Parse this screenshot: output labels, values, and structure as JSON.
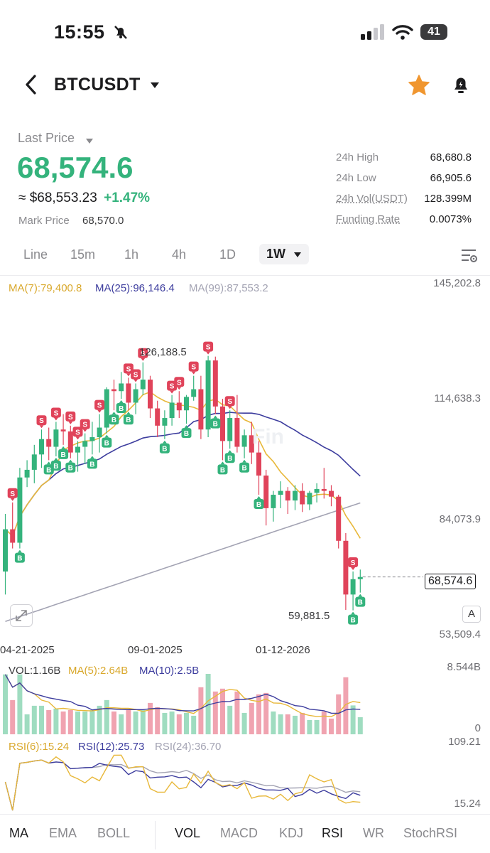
{
  "status_bar": {
    "time": "15:55",
    "battery": "41"
  },
  "header": {
    "symbol": "BTCUSDT"
  },
  "ticker": {
    "last_price_label": "Last Price",
    "last_price": "68,574.6",
    "usd_approx": "≈ $68,553.23",
    "change": "+1.47%",
    "mark_price_label": "Mark Price",
    "mark_price": "68,570.0",
    "stats": [
      {
        "label": "24h High",
        "value": "68,680.8"
      },
      {
        "label": "24h Low",
        "value": "66,905.6"
      },
      {
        "label": "24h Vol(USDT)",
        "value": "128.399M"
      },
      {
        "label": "Funding Rate",
        "value": "0.0073%"
      }
    ]
  },
  "timeframes": [
    "Line",
    "15m",
    "1h",
    "4h",
    "1D",
    "1W"
  ],
  "active_timeframe": "1W",
  "ma_legend": {
    "ma7": "MA(7):79,400.8",
    "ma25": "MA(25):96,146.4",
    "ma99": "MA(99):87,553.2"
  },
  "axis_labels": [
    "145,202.8",
    "114,638.3",
    "84,073.9",
    "53,509.4"
  ],
  "date_labels": [
    "04-21-2025",
    "09-01-2025",
    "01-12-2026"
  ],
  "annotations": {
    "high": "126,188.5",
    "low": "59,881.5",
    "current": "68,574.6",
    "scale_mode": "A"
  },
  "vol_legend": {
    "vol": "VOL:1.16B",
    "ma5": "MA(5):2.64B",
    "ma10": "MA(10):2.5B"
  },
  "vol_axis": [
    "8.544B",
    "0"
  ],
  "rsi_legend": {
    "rsi6": "RSI(6):15.24",
    "rsi12": "RSI(12):25.73",
    "rsi24": "RSI(24):36.70"
  },
  "rsi_axis": [
    "109.21",
    "15.24"
  ],
  "bottom_tabs": [
    "MA",
    "EMA",
    "BOLL",
    "VOL",
    "MACD",
    "KDJ",
    "RSI",
    "WR",
    "StochRSI"
  ],
  "colors": {
    "up": "#34b37c",
    "down": "#e0435a",
    "ma7": "#e8b83a",
    "ma25": "#3d3d9e",
    "ma99": "#a3a3b3",
    "star": "#f0962f"
  },
  "chart_data": {
    "type": "candlestick",
    "title": "",
    "ylim": [
      53509.4,
      145202.8
    ],
    "candles": [
      [
        70000,
        85000,
        64000,
        81000
      ],
      [
        81000,
        88000,
        76000,
        77500
      ],
      [
        77500,
        97000,
        76000,
        94500
      ],
      [
        94500,
        99000,
        92000,
        96500
      ],
      [
        96500,
        103000,
        93000,
        100500
      ],
      [
        100500,
        107000,
        97000,
        104500
      ],
      [
        104500,
        107500,
        99000,
        102500
      ],
      [
        102500,
        109000,
        100000,
        107000
      ],
      [
        107000,
        111000,
        103000,
        106500
      ],
      [
        106500,
        108000,
        99500,
        101000
      ],
      [
        101000,
        104000,
        96000,
        102500
      ],
      [
        102500,
        106000,
        98000,
        104000
      ],
      [
        104000,
        109000,
        100500,
        105000
      ],
      [
        105000,
        111000,
        101000,
        107500
      ],
      [
        107500,
        118000,
        106000,
        117500
      ],
      [
        117500,
        120000,
        112000,
        117000
      ],
      [
        117000,
        122000,
        115000,
        119000
      ],
      [
        119000,
        120500,
        112000,
        114000
      ],
      [
        114000,
        119000,
        111000,
        117500
      ],
      [
        117500,
        124500,
        116000,
        120000
      ],
      [
        120000,
        121000,
        110000,
        112500
      ],
      [
        112500,
        114500,
        105000,
        108000
      ],
      [
        108000,
        112000,
        104500,
        110000
      ],
      [
        110000,
        116000,
        108000,
        114000
      ],
      [
        114000,
        117000,
        110000,
        112000
      ],
      [
        112000,
        116000,
        108500,
        115500
      ],
      [
        115500,
        121000,
        114500,
        117500
      ],
      [
        117500,
        121000,
        104500,
        107000
      ],
      [
        107000,
        126188.5,
        105000,
        125000
      ],
      [
        125000,
        126000,
        111000,
        113000
      ],
      [
        113000,
        115000,
        99000,
        104000
      ],
      [
        104000,
        112000,
        102000,
        110000
      ],
      [
        110000,
        116000,
        101000,
        102500
      ],
      [
        102500,
        107000,
        99500,
        105500
      ],
      [
        105500,
        109000,
        98000,
        101000
      ],
      [
        101000,
        104000,
        90000,
        95000
      ],
      [
        95000,
        96500,
        82000,
        86500
      ],
      [
        86500,
        91000,
        83000,
        90000
      ],
      [
        90000,
        93500,
        86500,
        91000
      ],
      [
        91000,
        92000,
        85000,
        88500
      ],
      [
        88500,
        92500,
        86000,
        91000
      ],
      [
        91000,
        93000,
        85500,
        87500
      ],
      [
        87500,
        91000,
        86000,
        90500
      ],
      [
        90500,
        93000,
        88000,
        91500
      ],
      [
        91500,
        97000,
        89000,
        91000
      ],
      [
        91000,
        92500,
        87000,
        89500
      ],
      [
        89500,
        90000,
        76000,
        78000
      ],
      [
        78000,
        80000,
        60000,
        64000
      ],
      [
        64000,
        70000,
        59881.5,
        68000
      ],
      [
        68000,
        70500,
        64500,
        68574.6
      ]
    ],
    "ma7": 79400.8,
    "ma25": 96146.4,
    "ma99": 87553.2
  }
}
